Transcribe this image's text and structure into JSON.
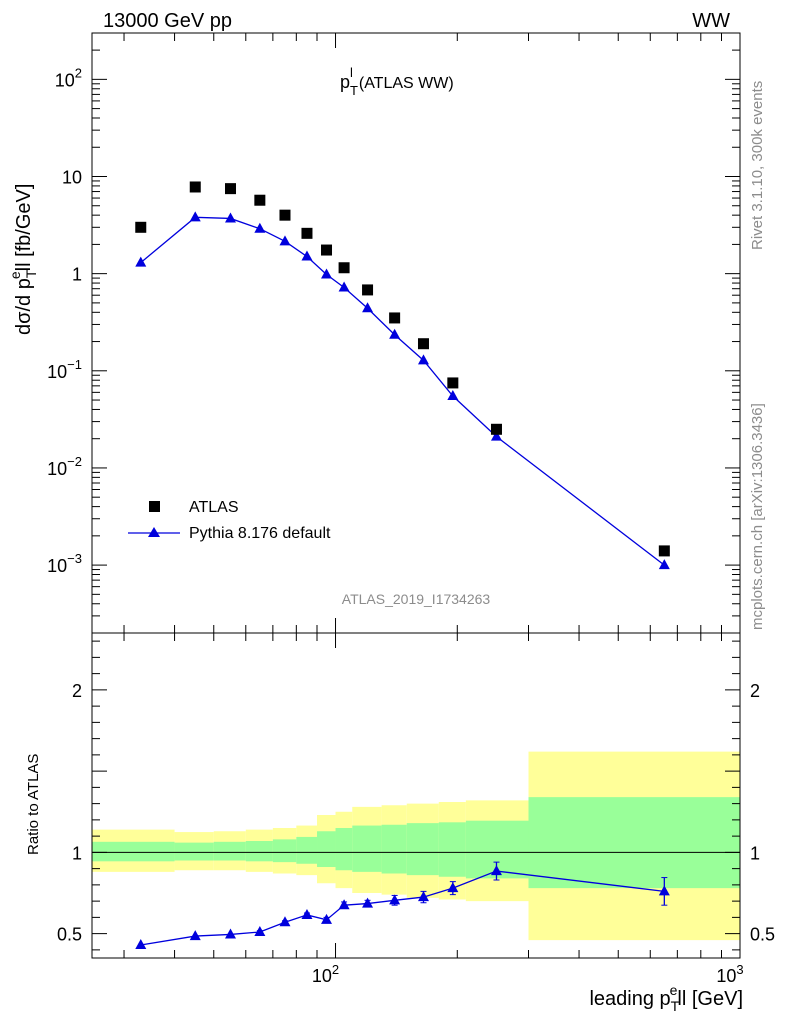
{
  "header": {
    "beam": "13000 GeV pp",
    "process": "WW"
  },
  "side_labels": {
    "rivet": "Rivet 3.1.10,  300k events",
    "mcplots": "mcplots.cern.ch [arXiv:1306.3436]"
  },
  "chart_data": [
    {
      "type": "scatter",
      "title": "p_T^l (ATLAS WW)",
      "reference": "ATLAS_2019_I1734263",
      "ylabel": "dσ/d p_T^e ll [fb/GeV]",
      "xscale": "log",
      "yscale": "log",
      "xlim": [
        25,
        1000
      ],
      "ylim": [
        0.0002,
        300
      ],
      "legend": "bottom-left",
      "colors": {
        "data": "#000000",
        "mc": "#0000dd"
      },
      "series": [
        {
          "name": "ATLAS",
          "marker": "square",
          "x": [
            33,
            45,
            55,
            65,
            75,
            85,
            95,
            105,
            120,
            140,
            165,
            195,
            250,
            650
          ],
          "y": [
            3.0,
            7.8,
            7.5,
            5.7,
            4.0,
            2.6,
            1.75,
            1.15,
            0.68,
            0.35,
            0.19,
            0.075,
            0.025,
            0.0014
          ]
        },
        {
          "name": "Pythia 8.176 default",
          "marker": "triangle",
          "x": [
            33,
            45,
            55,
            65,
            75,
            85,
            95,
            105,
            120,
            140,
            165,
            195,
            250,
            650
          ],
          "y": [
            1.3,
            3.8,
            3.7,
            2.9,
            2.15,
            1.5,
            0.98,
            0.72,
            0.44,
            0.235,
            0.128,
            0.055,
            0.021,
            0.001
          ]
        }
      ]
    },
    {
      "type": "line",
      "ylabel": "Ratio to ATLAS",
      "xlabel": "leading p_T^e ll [GeV]",
      "xscale": "log",
      "xlim": [
        25,
        1000
      ],
      "ylim": [
        0.35,
        2.35
      ],
      "reference_line": 1,
      "colors": {
        "inner_band": "#99ff99",
        "outer_band": "#ffff99",
        "mc": "#0000dd"
      },
      "bands": [
        {
          "x_lo": 25,
          "x_hi": 40,
          "inner": [
            0.945,
            1.065
          ],
          "outer": [
            0.88,
            1.14
          ]
        },
        {
          "x_lo": 40,
          "x_hi": 50,
          "inner": [
            0.95,
            1.06
          ],
          "outer": [
            0.89,
            1.125
          ]
        },
        {
          "x_lo": 50,
          "x_hi": 60,
          "inner": [
            0.95,
            1.065
          ],
          "outer": [
            0.89,
            1.13
          ]
        },
        {
          "x_lo": 60,
          "x_hi": 70,
          "inner": [
            0.945,
            1.07
          ],
          "outer": [
            0.88,
            1.14
          ]
        },
        {
          "x_lo": 70,
          "x_hi": 80,
          "inner": [
            0.94,
            1.08
          ],
          "outer": [
            0.87,
            1.15
          ]
        },
        {
          "x_lo": 80,
          "x_hi": 90,
          "inner": [
            0.93,
            1.095
          ],
          "outer": [
            0.86,
            1.165
          ]
        },
        {
          "x_lo": 90,
          "x_hi": 100,
          "inner": [
            0.91,
            1.13
          ],
          "outer": [
            0.81,
            1.23
          ]
        },
        {
          "x_lo": 100,
          "x_hi": 110,
          "inner": [
            0.89,
            1.15
          ],
          "outer": [
            0.78,
            1.25
          ]
        },
        {
          "x_lo": 110,
          "x_hi": 130,
          "inner": [
            0.88,
            1.165
          ],
          "outer": [
            0.75,
            1.28
          ]
        },
        {
          "x_lo": 130,
          "x_hi": 150,
          "inner": [
            0.87,
            1.17
          ],
          "outer": [
            0.74,
            1.29
          ]
        },
        {
          "x_lo": 150,
          "x_hi": 180,
          "inner": [
            0.86,
            1.18
          ],
          "outer": [
            0.72,
            1.3
          ]
        },
        {
          "x_lo": 180,
          "x_hi": 210,
          "inner": [
            0.85,
            1.185
          ],
          "outer": [
            0.71,
            1.31
          ]
        },
        {
          "x_lo": 210,
          "x_hi": 300,
          "inner": [
            0.84,
            1.195
          ],
          "outer": [
            0.7,
            1.32
          ]
        },
        {
          "x_lo": 300,
          "x_hi": 1000,
          "inner": [
            0.78,
            1.34
          ],
          "outer": [
            0.46,
            1.62
          ]
        }
      ],
      "series": [
        {
          "name": "Pythia 8.176 default",
          "x": [
            33,
            45,
            55,
            65,
            75,
            85,
            95,
            105,
            120,
            140,
            165,
            195,
            250,
            650
          ],
          "y": [
            0.43,
            0.485,
            0.495,
            0.51,
            0.57,
            0.615,
            0.585,
            0.675,
            0.685,
            0.705,
            0.725,
            0.78,
            0.885,
            0.76
          ],
          "err": [
            0.004,
            0.005,
            0.006,
            0.008,
            0.009,
            0.012,
            0.015,
            0.02,
            0.02,
            0.03,
            0.035,
            0.04,
            0.055,
            0.085
          ]
        }
      ]
    }
  ]
}
